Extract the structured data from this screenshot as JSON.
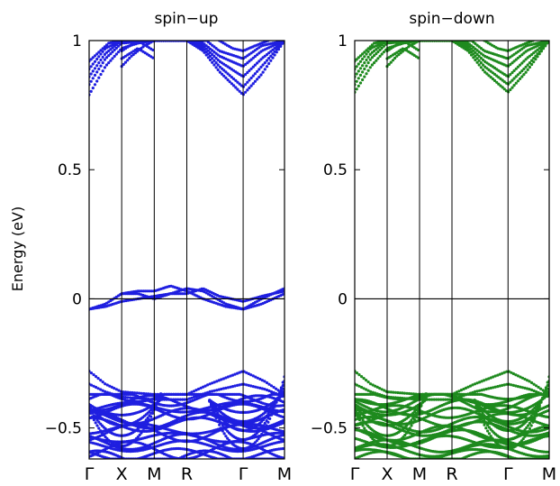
{
  "chart_data": [
    {
      "type": "scatter",
      "title": "spin−up",
      "ylabel": "Energy (eV)",
      "ylim": [
        -0.62,
        1.0
      ],
      "yticks": [
        {
          "value": 1,
          "label": "1"
        },
        {
          "value": 0.5,
          "label": "0.5"
        },
        {
          "value": 0,
          "label": "0"
        },
        {
          "value": -0.5,
          "label": "−0.5"
        }
      ],
      "kpoints": [
        {
          "label": "Γ",
          "k": 0
        },
        {
          "label": "X",
          "k": 1
        },
        {
          "label": "M",
          "k": 2
        },
        {
          "label": "R",
          "k": 3
        },
        {
          "label": "Γ",
          "k": 4.73
        },
        {
          "label": "M",
          "k": 6
        }
      ],
      "fermi_level": 0,
      "color": "#1f1fe0",
      "bands": {
        "conduction": [
          {
            "name": "c1",
            "points": [
              [
                0,
                0.79
              ],
              [
                0.5,
                0.9
              ],
              [
                1,
                0.97
              ],
              [
                1.5,
                0.99
              ],
              [
                2,
                1.0
              ],
              [
                3,
                1.0
              ],
              [
                3.5,
                0.96
              ],
              [
                4,
                0.88
              ],
              [
                4.73,
                0.79
              ],
              [
                5.3,
                0.87
              ],
              [
                6,
                1.0
              ]
            ]
          },
          {
            "name": "c2",
            "points": [
              [
                0,
                0.83
              ],
              [
                0.5,
                0.93
              ],
              [
                1,
                0.99
              ],
              [
                2,
                1.0
              ],
              [
                3,
                1.0
              ],
              [
                3.5,
                0.97
              ],
              [
                4,
                0.9
              ],
              [
                4.73,
                0.82
              ],
              [
                5.3,
                0.9
              ],
              [
                6,
                1.0
              ]
            ]
          },
          {
            "name": "c3",
            "points": [
              [
                0,
                0.86
              ],
              [
                0.5,
                0.95
              ],
              [
                1,
                1.0
              ],
              [
                2,
                1.0
              ],
              [
                3,
                1.0
              ],
              [
                3.5,
                0.98
              ],
              [
                4,
                0.92
              ],
              [
                4.73,
                0.86
              ],
              [
                5.3,
                0.93
              ],
              [
                6,
                1.0
              ]
            ]
          },
          {
            "name": "c4",
            "points": [
              [
                0,
                0.89
              ],
              [
                0.5,
                0.97
              ],
              [
                1,
                1.0
              ],
              [
                2,
                1.0
              ],
              [
                3,
                1.0
              ],
              [
                3.5,
                0.99
              ],
              [
                4,
                0.94
              ],
              [
                4.73,
                0.9
              ],
              [
                5.3,
                0.96
              ],
              [
                6,
                1.0
              ]
            ]
          },
          {
            "name": "c5",
            "points": [
              [
                0,
                0.92
              ],
              [
                0.6,
                0.99
              ],
              [
                1,
                1.0
              ],
              [
                3,
                1.0
              ],
              [
                3.6,
                1.0
              ],
              [
                4,
                0.96
              ],
              [
                4.73,
                0.93
              ],
              [
                5.3,
                0.98
              ],
              [
                6,
                1.0
              ]
            ]
          },
          {
            "name": "c6",
            "points": [
              [
                1,
                0.9
              ],
              [
                1.3,
                0.94
              ],
              [
                1.7,
                0.98
              ],
              [
                2,
                1.0
              ]
            ]
          },
          {
            "name": "c7",
            "points": [
              [
                1,
                0.93
              ],
              [
                1.5,
                0.97
              ],
              [
                2,
                0.93
              ]
            ]
          },
          {
            "name": "c8",
            "points": [
              [
                1,
                0.96
              ],
              [
                1.5,
                1.0
              ],
              [
                2,
                0.96
              ]
            ]
          },
          {
            "name": "c9",
            "points": [
              [
                4,
                1.0
              ],
              [
                4.4,
                0.97
              ],
              [
                4.73,
                0.96
              ],
              [
                5.1,
                0.98
              ],
              [
                5.5,
                1.0
              ]
            ]
          }
        ],
        "midgap": [
          {
            "name": "m1",
            "points": [
              [
                0,
                -0.04
              ],
              [
                0.5,
                -0.02
              ],
              [
                1,
                0.02
              ],
              [
                1.5,
                0.03
              ],
              [
                2,
                0.03
              ],
              [
                2.5,
                0.05
              ],
              [
                3,
                0.03
              ],
              [
                3.5,
                0.0
              ],
              [
                4.2,
                -0.03
              ],
              [
                4.73,
                -0.04
              ],
              [
                5.3,
                0.0
              ],
              [
                6,
                0.04
              ]
            ]
          },
          {
            "name": "m2",
            "points": [
              [
                0,
                -0.04
              ],
              [
                0.5,
                -0.03
              ],
              [
                1,
                -0.01
              ],
              [
                1.5,
                0.0
              ],
              [
                2,
                0.01
              ],
              [
                2.5,
                0.02
              ],
              [
                3,
                0.04
              ],
              [
                3.5,
                0.03
              ],
              [
                4.2,
                -0.02
              ],
              [
                4.73,
                -0.04
              ],
              [
                5.3,
                -0.02
              ],
              [
                6,
                0.02
              ]
            ]
          },
          {
            "name": "m3",
            "points": [
              [
                1,
                0.02
              ],
              [
                1.5,
                0.02
              ],
              [
                2,
                0.0
              ],
              [
                2.5,
                0.02
              ],
              [
                3,
                0.02
              ],
              [
                3.5,
                0.04
              ],
              [
                4,
                0.01
              ],
              [
                4.73,
                -0.01
              ],
              [
                5.3,
                0.01
              ],
              [
                6,
                0.03
              ]
            ]
          }
        ],
        "valence_top": [
          {
            "name": "v1",
            "points": [
              [
                0,
                -0.28
              ],
              [
                0.5,
                -0.33
              ],
              [
                1,
                -0.36
              ],
              [
                2,
                -0.37
              ],
              [
                3,
                -0.37
              ],
              [
                3.7,
                -0.33
              ],
              [
                4.73,
                -0.28
              ],
              [
                5.4,
                -0.32
              ],
              [
                6,
                -0.37
              ]
            ]
          },
          {
            "name": "v2",
            "points": [
              [
                0,
                -0.33
              ],
              [
                0.5,
                -0.36
              ],
              [
                1,
                -0.38
              ],
              [
                2,
                -0.39
              ],
              [
                3,
                -0.39
              ],
              [
                3.7,
                -0.36
              ],
              [
                4.73,
                -0.33
              ],
              [
                5.4,
                -0.35
              ],
              [
                6,
                -0.38
              ]
            ]
          }
        ],
        "valence_region": [
          -0.37,
          -0.62
        ]
      }
    },
    {
      "type": "scatter",
      "title": "spin−down",
      "ylabel": "",
      "ylim": [
        -0.62,
        1.0
      ],
      "yticks": [
        {
          "value": 1,
          "label": "1"
        },
        {
          "value": 0.5,
          "label": "0.5"
        },
        {
          "value": 0,
          "label": "0"
        },
        {
          "value": -0.5,
          "label": "−0.5"
        }
      ],
      "kpoints": [
        {
          "label": "Γ",
          "k": 0
        },
        {
          "label": "X",
          "k": 1
        },
        {
          "label": "M",
          "k": 2
        },
        {
          "label": "R",
          "k": 3
        },
        {
          "label": "Γ",
          "k": 4.73
        },
        {
          "label": "M",
          "k": 6
        }
      ],
      "fermi_level": 0,
      "color": "#1e8a1e",
      "bands": {
        "conduction": [
          {
            "name": "c1",
            "points": [
              [
                0,
                0.8
              ],
              [
                0.5,
                0.9
              ],
              [
                1,
                0.97
              ],
              [
                1.5,
                0.99
              ],
              [
                2,
                1.0
              ],
              [
                3,
                1.0
              ],
              [
                3.5,
                0.96
              ],
              [
                4,
                0.88
              ],
              [
                4.73,
                0.8
              ],
              [
                5.3,
                0.88
              ],
              [
                6,
                1.0
              ]
            ]
          },
          {
            "name": "c2",
            "points": [
              [
                0,
                0.83
              ],
              [
                0.5,
                0.93
              ],
              [
                1,
                0.99
              ],
              [
                2,
                1.0
              ],
              [
                3,
                1.0
              ],
              [
                3.5,
                0.97
              ],
              [
                4,
                0.9
              ],
              [
                4.73,
                0.83
              ],
              [
                5.3,
                0.9
              ],
              [
                6,
                1.0
              ]
            ]
          },
          {
            "name": "c3",
            "points": [
              [
                0,
                0.86
              ],
              [
                0.5,
                0.95
              ],
              [
                1,
                1.0
              ],
              [
                2,
                1.0
              ],
              [
                3,
                1.0
              ],
              [
                3.5,
                0.98
              ],
              [
                4,
                0.92
              ],
              [
                4.73,
                0.86
              ],
              [
                5.3,
                0.93
              ],
              [
                6,
                1.0
              ]
            ]
          },
          {
            "name": "c4",
            "points": [
              [
                0,
                0.89
              ],
              [
                0.5,
                0.97
              ],
              [
                1,
                1.0
              ],
              [
                2,
                1.0
              ],
              [
                3,
                1.0
              ],
              [
                3.5,
                0.99
              ],
              [
                4,
                0.94
              ],
              [
                4.73,
                0.9
              ],
              [
                5.3,
                0.96
              ],
              [
                6,
                1.0
              ]
            ]
          },
          {
            "name": "c5",
            "points": [
              [
                0,
                0.92
              ],
              [
                0.6,
                0.99
              ],
              [
                1,
                1.0
              ],
              [
                3,
                1.0
              ],
              [
                3.6,
                1.0
              ],
              [
                4,
                0.96
              ],
              [
                4.73,
                0.93
              ],
              [
                5.3,
                0.98
              ],
              [
                6,
                1.0
              ]
            ]
          },
          {
            "name": "c6",
            "points": [
              [
                1,
                0.9
              ],
              [
                1.3,
                0.94
              ],
              [
                1.7,
                0.98
              ],
              [
                2,
                1.0
              ]
            ]
          },
          {
            "name": "c7",
            "points": [
              [
                1,
                0.93
              ],
              [
                1.5,
                0.97
              ],
              [
                2,
                0.93
              ]
            ]
          },
          {
            "name": "c8",
            "points": [
              [
                1,
                0.96
              ],
              [
                1.5,
                1.0
              ],
              [
                2,
                0.96
              ]
            ]
          },
          {
            "name": "c9",
            "points": [
              [
                4,
                1.0
              ],
              [
                4.4,
                0.97
              ],
              [
                4.73,
                0.96
              ],
              [
                5.1,
                0.98
              ],
              [
                5.5,
                1.0
              ]
            ]
          }
        ],
        "midgap": [],
        "valence_top": [
          {
            "name": "v1",
            "points": [
              [
                0,
                -0.28
              ],
              [
                0.5,
                -0.33
              ],
              [
                1,
                -0.36
              ],
              [
                2,
                -0.37
              ],
              [
                3,
                -0.37
              ],
              [
                3.7,
                -0.33
              ],
              [
                4.73,
                -0.28
              ],
              [
                5.4,
                -0.32
              ],
              [
                6,
                -0.37
              ]
            ]
          },
          {
            "name": "v2",
            "points": [
              [
                0,
                -0.33
              ],
              [
                0.5,
                -0.36
              ],
              [
                1,
                -0.38
              ],
              [
                2,
                -0.39
              ],
              [
                3,
                -0.39
              ],
              [
                3.7,
                -0.36
              ],
              [
                4.73,
                -0.33
              ],
              [
                5.4,
                -0.35
              ],
              [
                6,
                -0.38
              ]
            ]
          }
        ],
        "valence_region": [
          -0.37,
          -0.62
        ]
      }
    }
  ]
}
